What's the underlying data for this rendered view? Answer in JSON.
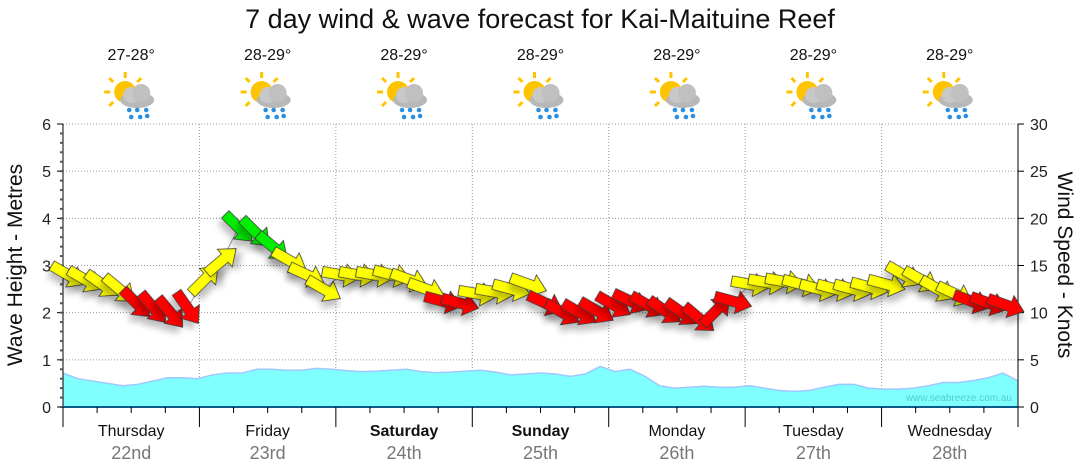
{
  "chart_data": {
    "type": "area+wind-arrows",
    "title": "7 day wind & wave forecast for Kai-Maituine Reef",
    "ylabel_left": "Wave Height - Metres",
    "ylabel_right": "Wind Speed - Knots",
    "ylim_left": [
      0,
      6
    ],
    "ylim_right": [
      0,
      30
    ],
    "yticks_left": [
      "0",
      "1",
      "2",
      "3",
      "4",
      "5",
      "6"
    ],
    "yticks_right": [
      "0",
      "5",
      "10",
      "15",
      "20",
      "25",
      "30"
    ],
    "grid": true,
    "watermark": "www.seabreeze.com.au",
    "days": [
      {
        "name": "Thursday",
        "date": "22nd",
        "temp": "27-28°",
        "weekend": false,
        "icon": "sun-cloud-rain-icon"
      },
      {
        "name": "Friday",
        "date": "23rd",
        "temp": "28-29°",
        "weekend": false,
        "icon": "sun-cloud-rain-icon"
      },
      {
        "name": "Saturday",
        "date": "24th",
        "temp": "28-29°",
        "weekend": true,
        "icon": "sun-cloud-rain-icon"
      },
      {
        "name": "Sunday",
        "date": "25th",
        "temp": "28-29°",
        "weekend": true,
        "icon": "sun-cloud-rain-icon"
      },
      {
        "name": "Monday",
        "date": "26th",
        "temp": "28-29°",
        "weekend": false,
        "icon": "sun-cloud-rain-icon"
      },
      {
        "name": "Tuesday",
        "date": "27th",
        "temp": "28-29°",
        "weekend": false,
        "icon": "sun-cloud-rain-icon"
      },
      {
        "name": "Wednesday",
        "date": "28th",
        "temp": "28-29°",
        "weekend": false,
        "icon": "sun-cloud-rain-icon"
      }
    ],
    "wave_height_m": [
      0.72,
      0.6,
      0.55,
      0.5,
      0.45,
      0.48,
      0.55,
      0.62,
      0.62,
      0.6,
      0.68,
      0.72,
      0.72,
      0.8,
      0.8,
      0.78,
      0.78,
      0.82,
      0.8,
      0.77,
      0.75,
      0.76,
      0.78,
      0.8,
      0.75,
      0.73,
      0.74,
      0.76,
      0.78,
      0.74,
      0.68,
      0.7,
      0.72,
      0.7,
      0.65,
      0.7,
      0.86,
      0.75,
      0.8,
      0.65,
      0.45,
      0.4,
      0.42,
      0.44,
      0.42,
      0.42,
      0.45,
      0.4,
      0.35,
      0.33,
      0.35,
      0.42,
      0.48,
      0.48,
      0.4,
      0.38,
      0.38,
      0.4,
      0.45,
      0.52,
      0.52,
      0.56,
      0.62,
      0.72,
      0.55
    ],
    "wind_knots": [
      14,
      13.5,
      13,
      12.5,
      11,
      10.5,
      10,
      10.5,
      13.5,
      15.5,
      19,
      18.5,
      17,
      15.5,
      14,
      12.5,
      14,
      14,
      14,
      14,
      13.5,
      12.5,
      11.2,
      11,
      12,
      12.2,
      12.5,
      13,
      11,
      10,
      10,
      10.2,
      10.8,
      11.2,
      10.8,
      10.2,
      10,
      9.4,
      10.2,
      11.2,
      13,
      13.2,
      13.3,
      13,
      12.5,
      12.5,
      12.5,
      12.7,
      13,
      14,
      13.5,
      12.5,
      12,
      11.2,
      11,
      10.8
    ],
    "wind_dir_deg": [
      300,
      300,
      305,
      310,
      315,
      320,
      320,
      325,
      225,
      230,
      315,
      315,
      310,
      300,
      295,
      300,
      280,
      280,
      280,
      285,
      290,
      290,
      285,
      285,
      280,
      280,
      285,
      290,
      295,
      300,
      300,
      300,
      300,
      295,
      300,
      305,
      305,
      310,
      225,
      285,
      280,
      280,
      280,
      285,
      285,
      285,
      285,
      285,
      285,
      300,
      300,
      300,
      295,
      290,
      290,
      290
    ],
    "wind_colors": [
      "#ffff00",
      "#ffff00",
      "#ffff00",
      "#ffff00",
      "#ff0000",
      "#ff0000",
      "#ff0000",
      "#ff0000",
      "#ffff00",
      "#ffff00",
      "#00ee00",
      "#00ee00",
      "#00ee00",
      "#ffff00",
      "#ffff00",
      "#ffff00",
      "#ffff00",
      "#ffff00",
      "#ffff00",
      "#ffff00",
      "#ffff00",
      "#ffff00",
      "#ff0000",
      "#ff0000",
      "#ffff00",
      "#ffff00",
      "#ffff00",
      "#ffff00",
      "#ff0000",
      "#ff0000",
      "#ff0000",
      "#ff0000",
      "#ff0000",
      "#ff0000",
      "#ff0000",
      "#ff0000",
      "#ff0000",
      "#ff0000",
      "#ff0000",
      "#ff0000",
      "#ffff00",
      "#ffff00",
      "#ffff00",
      "#ffff00",
      "#ffff00",
      "#ffff00",
      "#ffff00",
      "#ffff00",
      "#ffff00",
      "#ffff00",
      "#ffff00",
      "#ffff00",
      "#ffff00",
      "#ff0000",
      "#ff0000",
      "#ff0000"
    ],
    "wave_fill_color": "#80ffff",
    "wave_line_color": "#a0c8ff"
  }
}
